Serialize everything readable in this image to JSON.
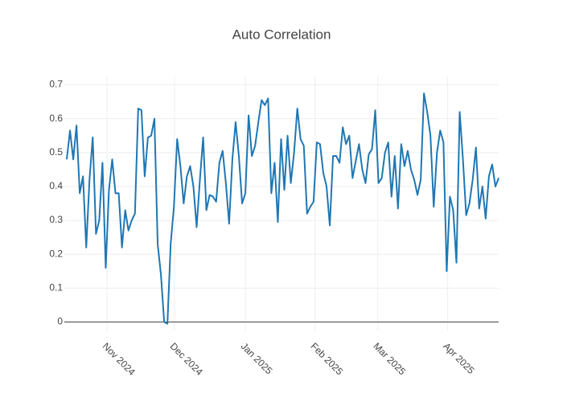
{
  "chart_data": {
    "type": "line",
    "title": "Auto Correlation",
    "series": [
      {
        "color": "#1f77b4",
        "values": [
          0.48,
          0.565,
          0.48,
          0.58,
          0.38,
          0.43,
          0.22,
          0.42,
          0.545,
          0.26,
          0.3,
          0.47,
          0.16,
          0.39,
          0.48,
          0.38,
          0.38,
          0.22,
          0.33,
          0.27,
          0.3,
          0.32,
          0.63,
          0.625,
          0.43,
          0.545,
          0.55,
          0.6,
          0.23,
          0.14,
          0.0,
          -0.005,
          0.23,
          0.34,
          0.54,
          0.46,
          0.35,
          0.43,
          0.46,
          0.4,
          0.28,
          0.42,
          0.545,
          0.33,
          0.375,
          0.37,
          0.355,
          0.47,
          0.505,
          0.41,
          0.29,
          0.48,
          0.59,
          0.49,
          0.35,
          0.38,
          0.61,
          0.49,
          0.52,
          0.59,
          0.655,
          0.64,
          0.66,
          0.38,
          0.47,
          0.295,
          0.54,
          0.39,
          0.55,
          0.41,
          0.5,
          0.63,
          0.54,
          0.52,
          0.32,
          0.34,
          0.355,
          0.53,
          0.525,
          0.44,
          0.4,
          0.285,
          0.49,
          0.49,
          0.47,
          0.575,
          0.525,
          0.55,
          0.425,
          0.475,
          0.525,
          0.45,
          0.41,
          0.495,
          0.51,
          0.625,
          0.41,
          0.425,
          0.5,
          0.53,
          0.37,
          0.49,
          0.335,
          0.525,
          0.46,
          0.505,
          0.45,
          0.42,
          0.375,
          0.42,
          0.675,
          0.62,
          0.55,
          0.34,
          0.5,
          0.565,
          0.53,
          0.15,
          0.37,
          0.33,
          0.175,
          0.62,
          0.48,
          0.315,
          0.35,
          0.42,
          0.515,
          0.335,
          0.4,
          0.305,
          0.43,
          0.465,
          0.4,
          0.425
        ]
      }
    ],
    "xlim": [
      0,
      133
    ],
    "xticks": [
      {
        "value": 12.4,
        "label": "Nov 2024"
      },
      {
        "value": 33.2,
        "label": "Dec 2024"
      },
      {
        "value": 55,
        "label": "Jan 2025"
      },
      {
        "value": 76.5,
        "label": "Feb 2025"
      },
      {
        "value": 95.8,
        "label": "Mar 2025"
      },
      {
        "value": 117.3,
        "label": "Apr 2025"
      }
    ],
    "ylim": [
      -0.025,
      0.725
    ],
    "yticks": [
      0,
      0.1,
      0.2,
      0.3,
      0.4,
      0.5,
      0.6,
      0.7
    ],
    "grid": true
  }
}
